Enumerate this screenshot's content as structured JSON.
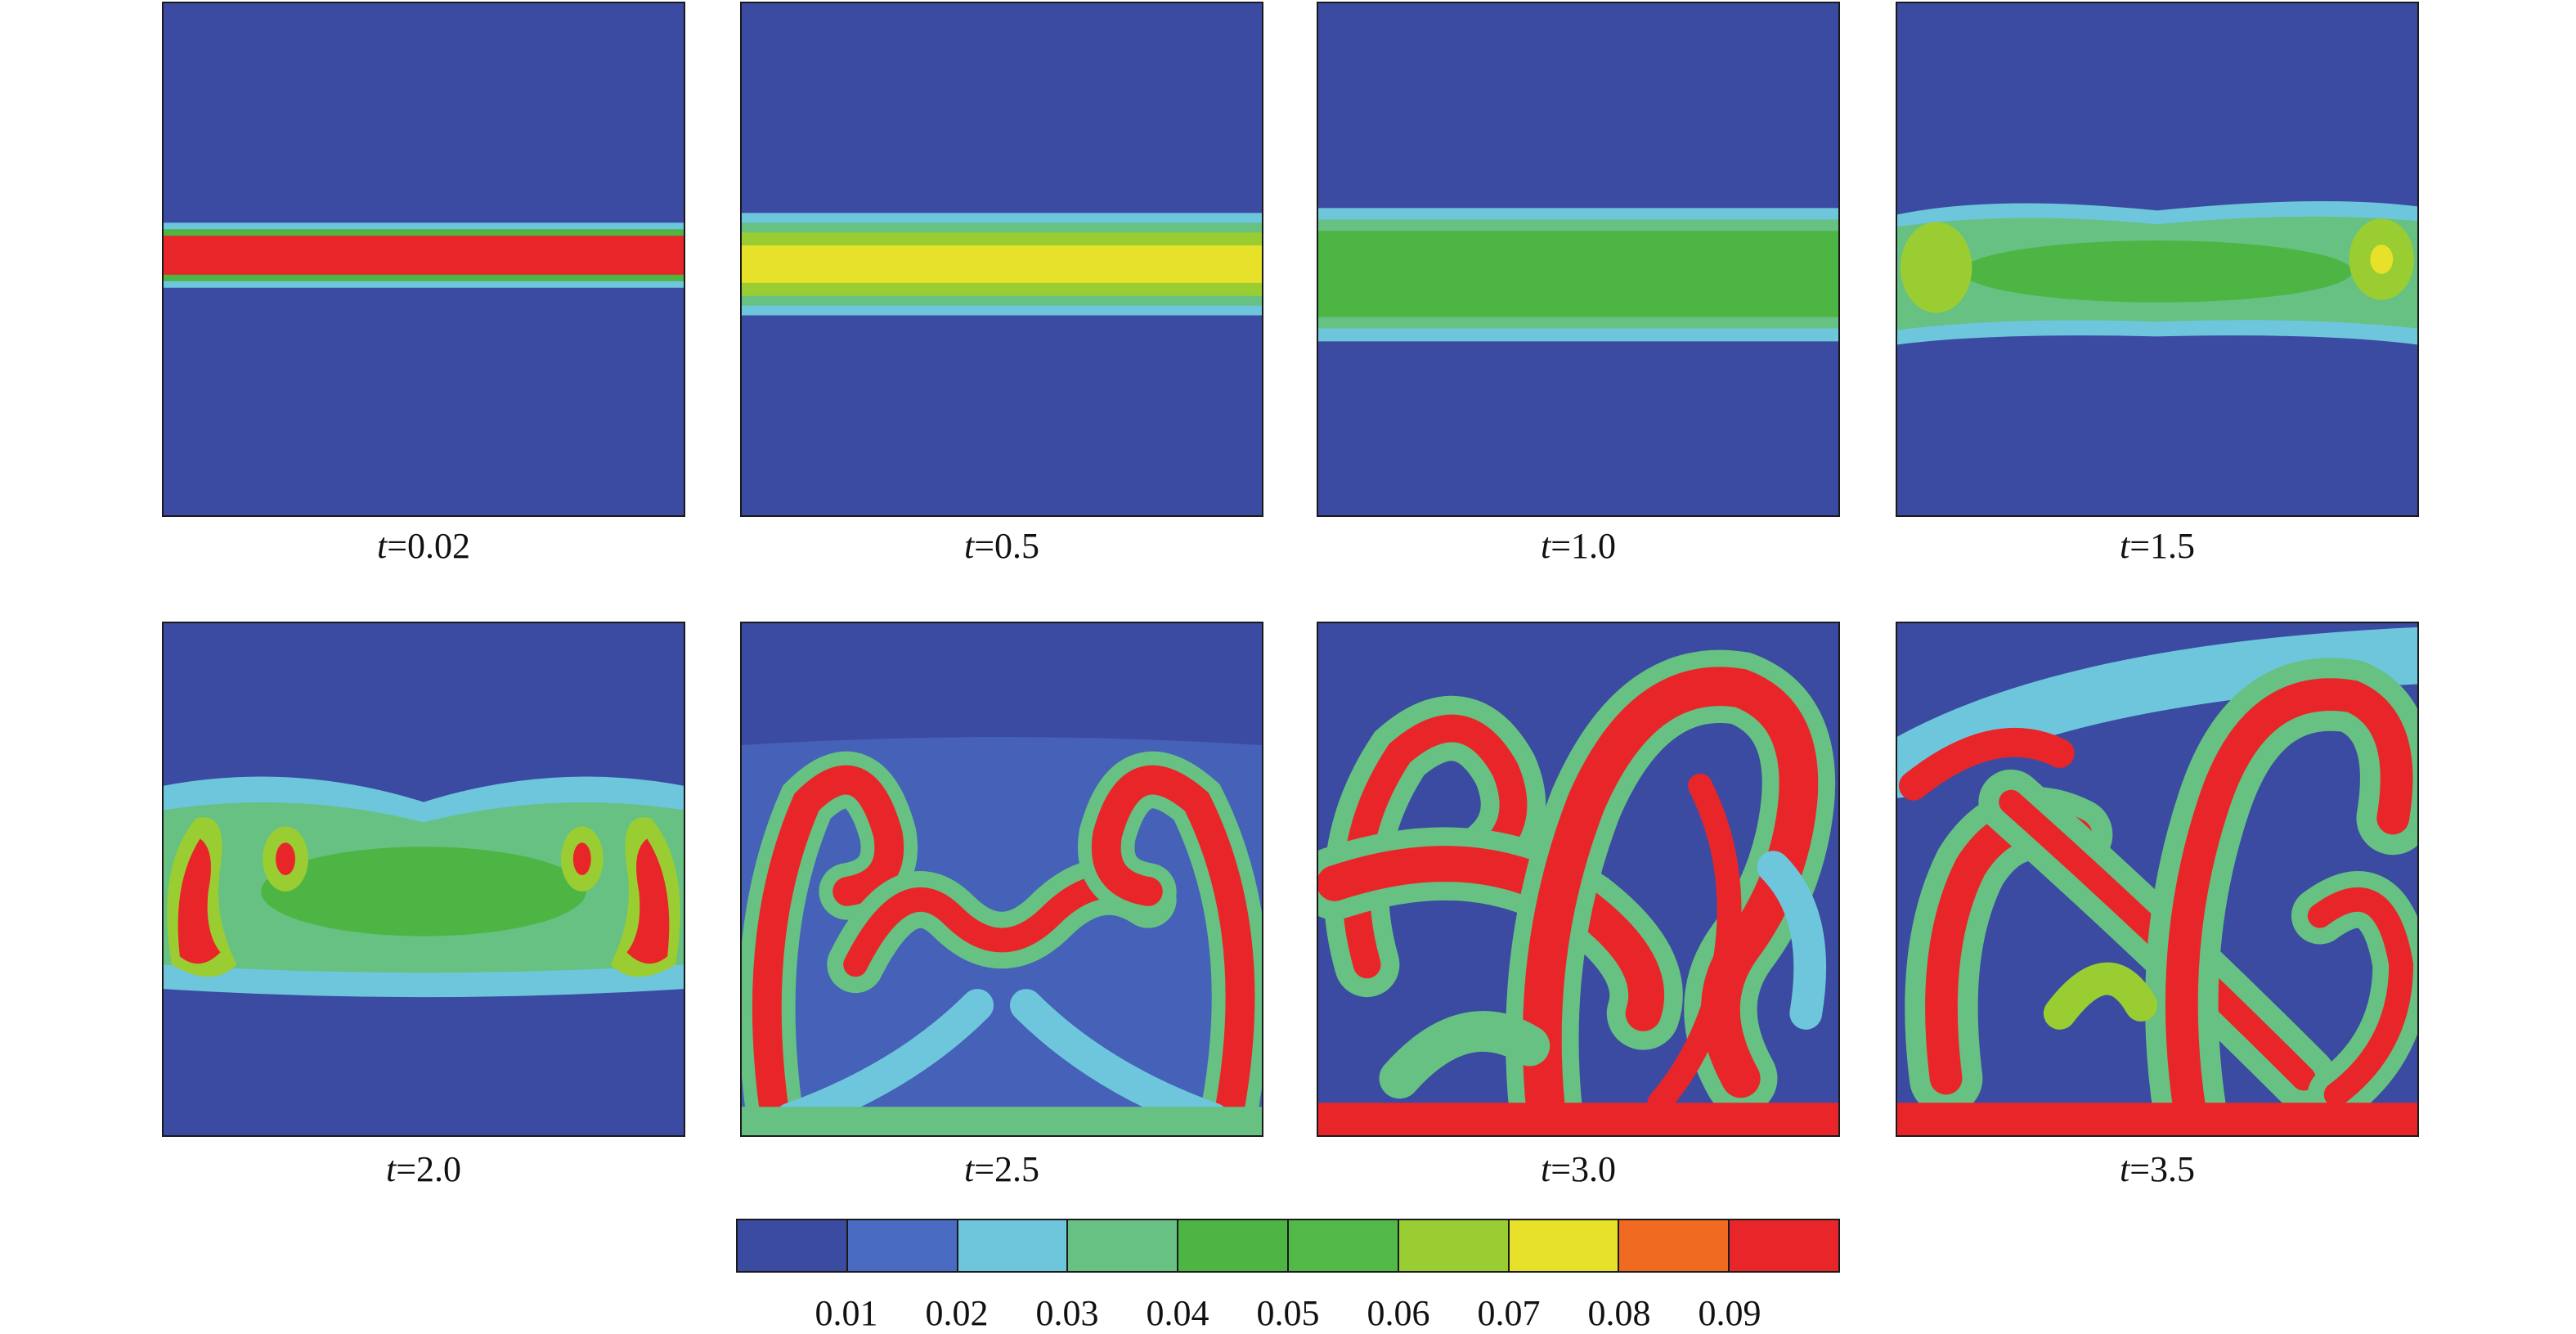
{
  "panels": [
    {
      "time_var": "t",
      "time_value": "=0.02"
    },
    {
      "time_var": "t",
      "time_value": "=0.5"
    },
    {
      "time_var": "t",
      "time_value": "=1.0"
    },
    {
      "time_var": "t",
      "time_value": "=1.5"
    },
    {
      "time_var": "t",
      "time_value": "=2.0"
    },
    {
      "time_var": "t",
      "time_value": "=2.5"
    },
    {
      "time_var": "t",
      "time_value": "=3.0"
    },
    {
      "time_var": "t",
      "time_value": "=3.5"
    }
  ],
  "colorbar": {
    "ticks": [
      "0.01",
      "0.02",
      "0.03",
      "0.04",
      "0.05",
      "0.06",
      "0.07",
      "0.08",
      "0.09"
    ],
    "colors": [
      "#3b4ba1",
      "#4a6bc2",
      "#6ec6dc",
      "#66c182",
      "#4db544",
      "#52b848",
      "#9acd32",
      "#e8e12a",
      "#f06a22",
      "#e8262a"
    ]
  },
  "palette": {
    "background": "#3b4ba1",
    "level2": "#4a6bc2",
    "cyan": "#6ec6dc",
    "teal_green": "#66c182",
    "green": "#4db544",
    "yellow_green": "#9acd32",
    "yellow": "#e8e12a",
    "orange": "#f06a22",
    "red": "#e8262a"
  }
}
